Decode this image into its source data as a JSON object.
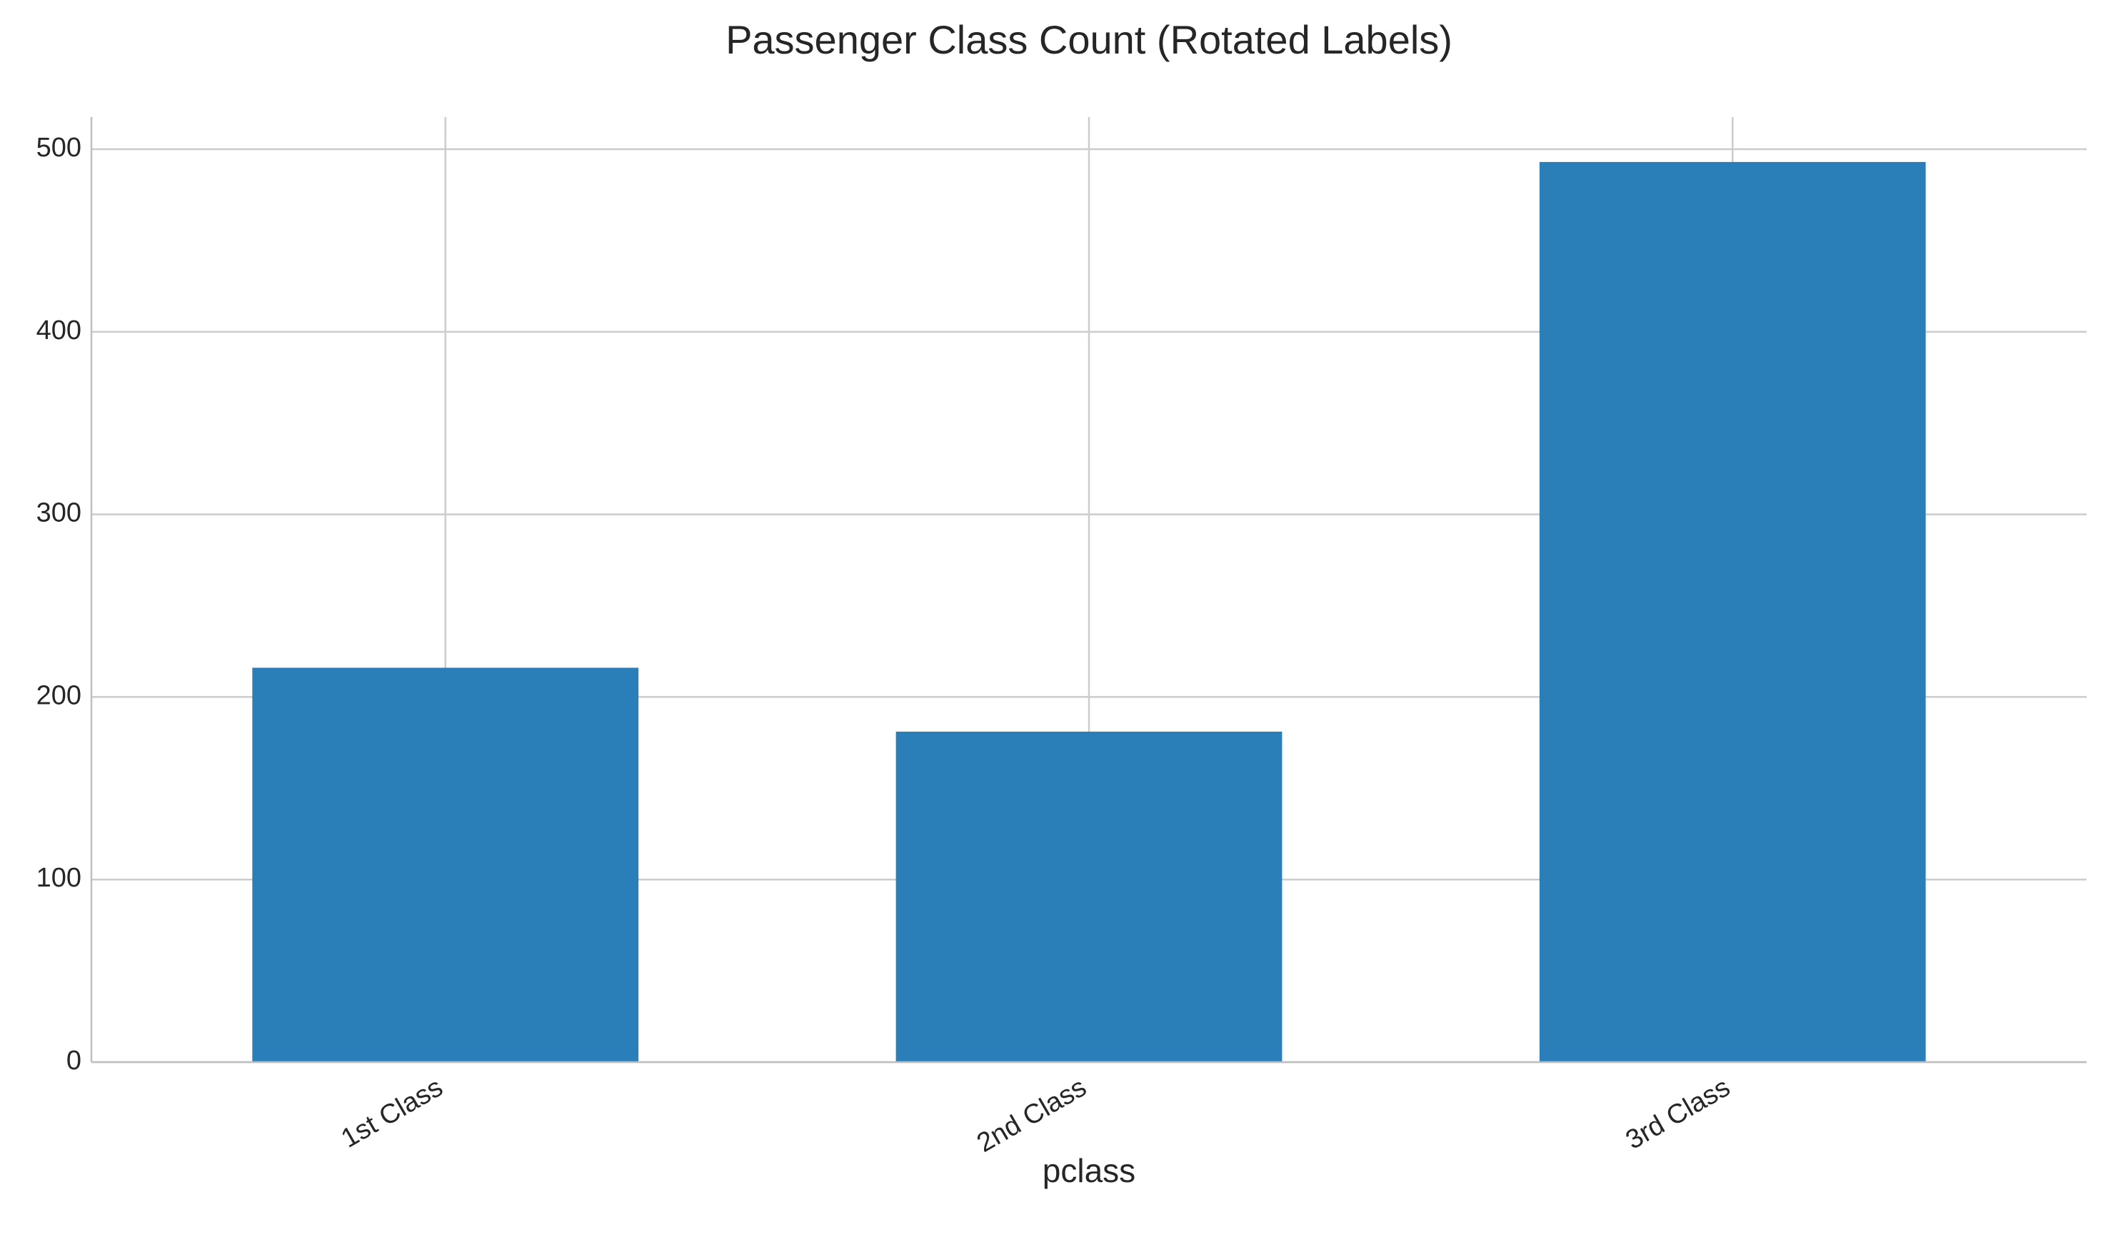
{
  "chart_data": {
    "type": "bar",
    "title": "Passenger Class Count (Rotated Labels)",
    "x_label": "pclass",
    "categories": [
      "1st Class",
      "2nd Class",
      "3rd Class"
    ],
    "values": [
      216,
      181,
      493
    ],
    "color": "#2a7fb8",
    "ylim": [
      0,
      517.6
    ],
    "yticks": [
      0,
      100,
      200,
      300,
      400,
      500
    ],
    "grid": true
  }
}
